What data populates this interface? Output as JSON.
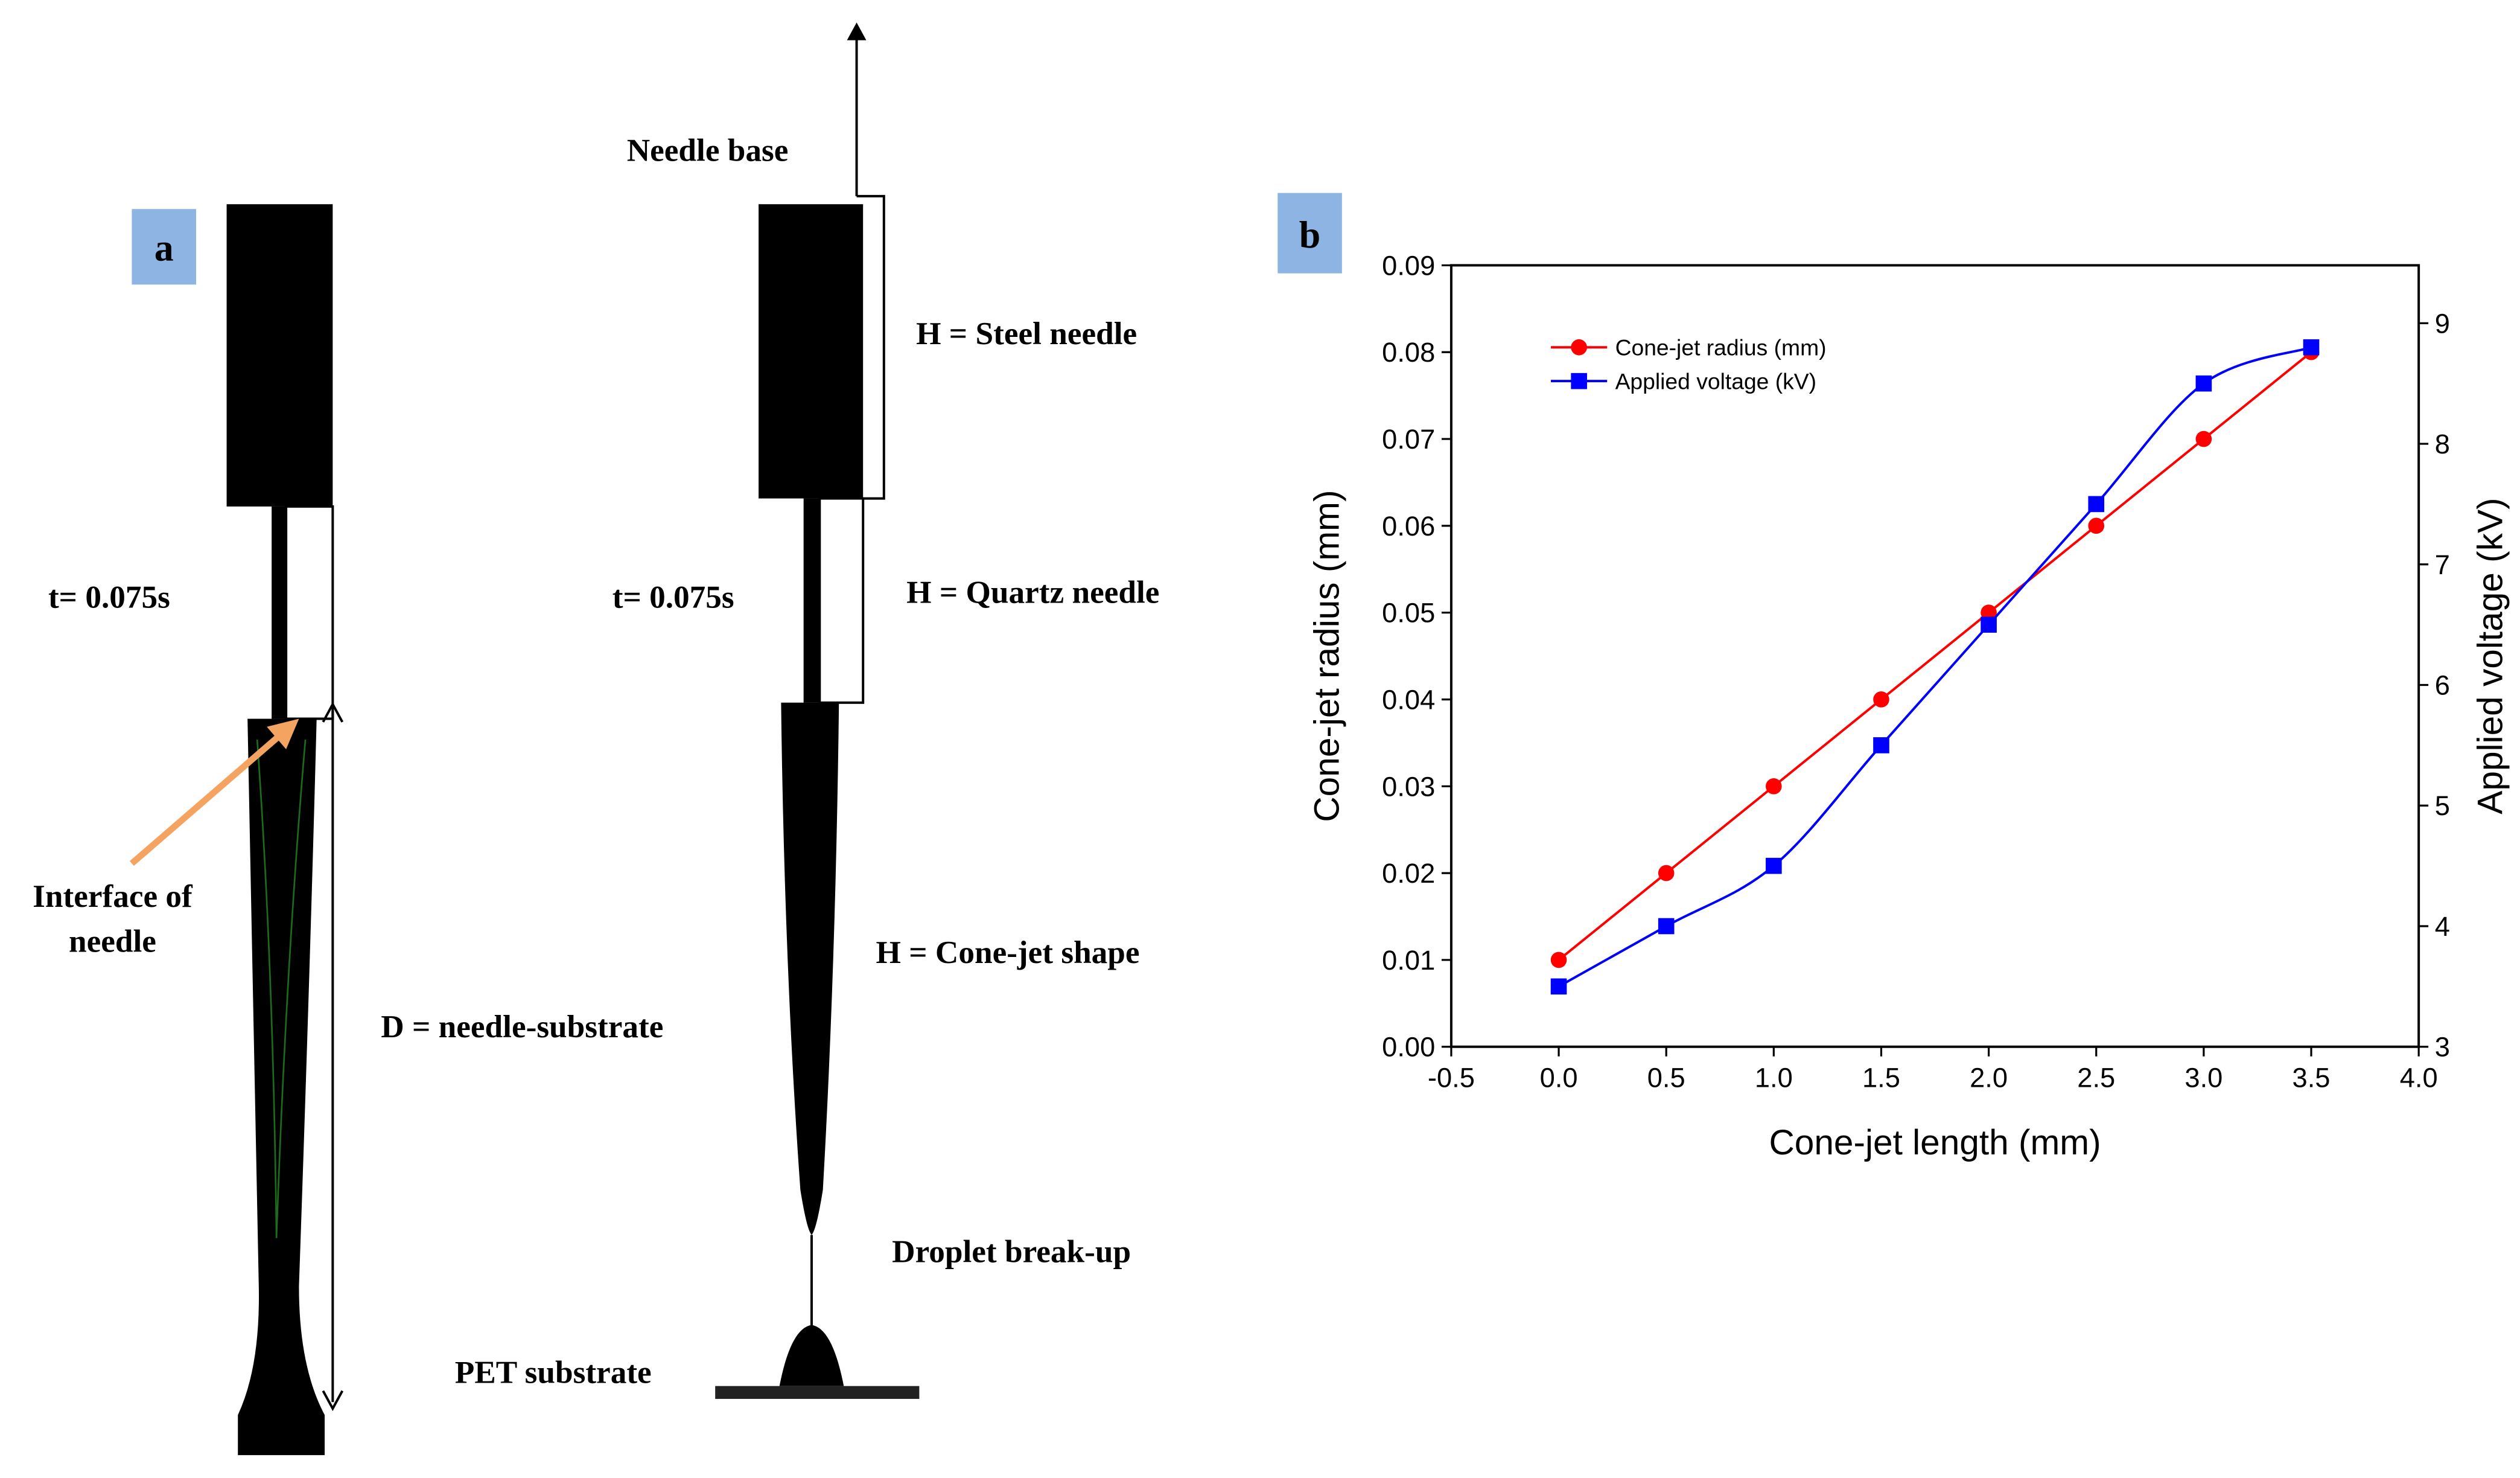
{
  "panel_a": {
    "label": "a",
    "left": {
      "time": "t= 0.075s",
      "interface": [
        "Interface of",
        "needle"
      ],
      "distance": "D = needle-substrate"
    },
    "right": {
      "base": "Needle base",
      "steel": "H = Steel needle",
      "time": "t= 0.075s",
      "quartz": "H = Quartz needle",
      "cone": "H = Cone-jet shape",
      "breakup": "Droplet break-up",
      "substrate": "PET substrate"
    }
  },
  "chart_data": {
    "type": "line",
    "panel_label": "b",
    "x_label": "Cone-jet length (mm)",
    "y_label": "Cone-jet radius (mm)",
    "y2_label": "Applied voltage (kV)",
    "x": [
      0,
      0.5,
      1,
      1.5,
      2,
      2.5,
      3,
      3.5
    ],
    "series": [
      {
        "name": "Cone-jet radius (mm)",
        "color": "#ff0000",
        "marker": "circle",
        "smooth": false,
        "values": [
          0.01,
          0.02,
          0.03,
          0.04,
          0.05,
          0.06,
          0.07,
          0.08
        ]
      },
      {
        "name": "Applied voltage (kV)",
        "color": "#0000ff",
        "marker": "square",
        "smooth": true,
        "axis": "y2",
        "values": [
          3.5,
          4,
          4.5,
          5.5,
          6.5,
          7.5,
          8.5,
          8.8
        ]
      }
    ],
    "xlim": [
      -0.5,
      4.0
    ],
    "xticks": [
      -0.5,
      {
        "value": 0,
        "label": "0.0"
      },
      0.5,
      {
        "value": 1,
        "label": "1.0"
      },
      1.5,
      {
        "value": 2,
        "label": "2.0"
      },
      2.5,
      {
        "value": 3,
        "label": "3.0"
      },
      3.5,
      {
        "value": 4,
        "label": "4.0"
      }
    ],
    "ylim": [
      0,
      0.09
    ],
    "yticks": [
      {
        "value": 0,
        "label": "0.00"
      },
      0.01,
      0.02,
      0.03,
      0.04,
      0.05,
      0.06,
      0.07,
      0.08,
      0.09
    ],
    "y2lim": [
      3,
      9.48
    ],
    "y2ticks": [
      3,
      4,
      5,
      6,
      7,
      8,
      9
    ],
    "legend": "upper-left"
  }
}
